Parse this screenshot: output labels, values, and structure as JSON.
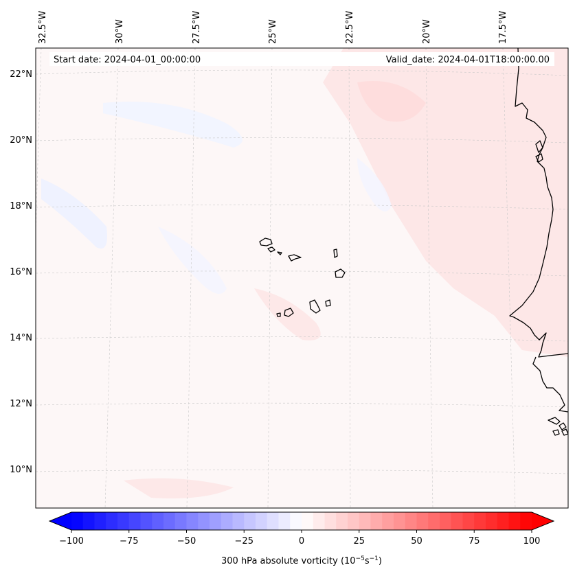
{
  "map": {
    "start_date": "Start date: 2024-04-01_00:00:00",
    "valid_date": "Valid_date: 2024-04-01T18:00:00.00",
    "lon_labels": [
      "32.5°W",
      "30°W",
      "27.5°W",
      "25°W",
      "22.5°W",
      "20°W",
      "17.5°W"
    ],
    "lat_labels": [
      "22°N",
      "20°N",
      "18°N",
      "16°N",
      "14°N",
      "12°N",
      "10°N"
    ],
    "field": "300 hPa absolute vorticity",
    "units_prefix": "(10",
    "units_exp1": "−5",
    "units_mid": "s",
    "units_exp2": "−1",
    "units_suffix": ")"
  },
  "colorbar": {
    "min": -100,
    "max": 100,
    "ticks": [
      -100,
      -75,
      -50,
      -25,
      0,
      25,
      50,
      75,
      100
    ],
    "tick_labels": [
      "−100",
      "−75",
      "−50",
      "−25",
      "0",
      "25",
      "50",
      "75",
      "100"
    ],
    "steps": 40,
    "low_color": "#0000ff",
    "high_color": "#ff0000",
    "mid_color": "#ffffff"
  },
  "colors": {
    "positive_tint": "#ffe8e8",
    "positive_tint_strong": "#ffd8d8",
    "negative_tint": "#eef2ff",
    "background_field": "#fff6f6"
  }
}
